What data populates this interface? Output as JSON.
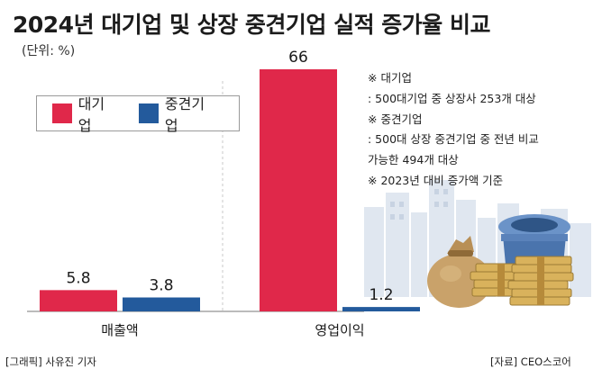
{
  "title": "2024년 대기업 및 상장 중견기업 실적 증가율 비교",
  "unit": "(단위: %)",
  "chart_data": {
    "type": "bar",
    "title": "2024년 대기업 및 상장 중견기업 실적 증가율 비교",
    "categories": [
      "매출액",
      "영업이익"
    ],
    "series": [
      {
        "name": "대기업",
        "color": "#e0284a",
        "values": [
          5.8,
          66
        ]
      },
      {
        "name": "중견기업",
        "color": "#235a9c",
        "values": [
          3.8,
          1.2
        ]
      }
    ],
    "xlabel": "",
    "ylabel": "",
    "ylim": [
      0,
      66
    ],
    "grid": false,
    "legend": "top-left"
  },
  "notes": [
    "※ 대기업",
    ": 500대기업 중  상장사 253개 대상",
    "※ 중견기업",
    ": 500대 상장 중견기업 중 전년 비교",
    "가능한 494개 대상",
    "※ 2023년 대비 증가액 기준"
  ],
  "credit_left": "[그래픽] 사유진 기자",
  "credit_right": "[자료] CEO스코어"
}
